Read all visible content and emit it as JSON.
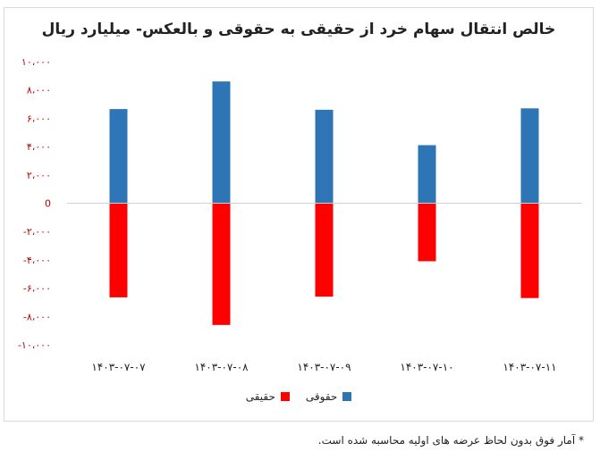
{
  "chart_data": {
    "type": "bar",
    "title": "خالص انتقال سهام خرد از حقیقی به حقوقی و بالعکس- میلیارد ریال",
    "categories": [
      "۱۴۰۳-۰۷-۰۷",
      "۱۴۰۳-۰۷-۰۸",
      "۱۴۰۳-۰۷-۰۹",
      "۱۴۰۳-۰۷-۱۰",
      "۱۴۰۳-۰۷-۱۱"
    ],
    "series": [
      {
        "name": "حقوقی",
        "color": "#2e75b6",
        "values": [
          6650,
          8600,
          6600,
          4100,
          6700
        ]
      },
      {
        "name": "حقیقی",
        "color": "#ff0000",
        "values": [
          -6650,
          -8600,
          -6600,
          -4100,
          -6700
        ]
      }
    ],
    "ylim": [
      -10000,
      10000
    ],
    "yticks": [
      {
        "value": 10000,
        "label": "۱۰،۰۰۰"
      },
      {
        "value": 8000,
        "label": "۸،۰۰۰"
      },
      {
        "value": 6000,
        "label": "۶،۰۰۰"
      },
      {
        "value": 4000,
        "label": "۴،۰۰۰"
      },
      {
        "value": 2000,
        "label": "۲،۰۰۰"
      },
      {
        "value": 0,
        "label": "0"
      },
      {
        "value": -2000,
        "label": "-۲،۰۰۰"
      },
      {
        "value": -4000,
        "label": "-۴،۰۰۰"
      },
      {
        "value": -6000,
        "label": "-۶،۰۰۰"
      },
      {
        "value": -8000,
        "label": "-۸،۰۰۰"
      },
      {
        "value": -10000,
        "label": "-۱۰،۰۰۰"
      }
    ],
    "grid": false,
    "legend_position": "bottom"
  },
  "legend": [
    {
      "label": "حقیقی",
      "color": "#ff0000"
    },
    {
      "label": "حقوقی",
      "color": "#2e75b6"
    }
  ],
  "footnote": "* آمار فوق بدون لحاظ عرضه های اولیه محاسبه شده است."
}
